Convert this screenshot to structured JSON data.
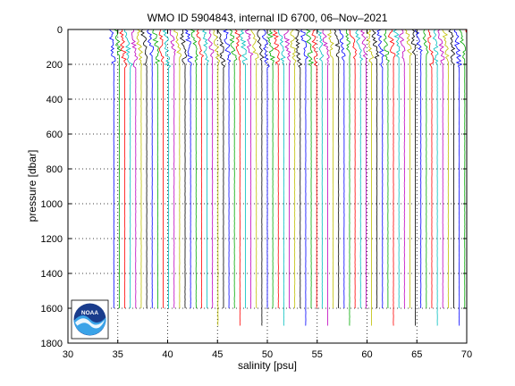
{
  "chart_data": {
    "type": "line",
    "title": "WMO ID 5904843, internal ID 6700, 06–Nov–2021",
    "xlabel": "salinity [psu]",
    "ylabel": "pressure [dbar]",
    "xlim": [
      30,
      70
    ],
    "ylim": [
      0,
      1800
    ],
    "y_reversed": true,
    "xticks": [
      "30",
      "35",
      "40",
      "45",
      "50",
      "55",
      "60",
      "65",
      "70"
    ],
    "yticks": [
      "0",
      "200",
      "400",
      "600",
      "800",
      "1000",
      "1200",
      "1400",
      "1600",
      "1800"
    ],
    "grid": "dotted",
    "colors": [
      "#0000ff",
      "#00aa00",
      "#ff0000",
      "#00bfbf",
      "#bf00bf",
      "#bfbf00",
      "#000000"
    ],
    "profiles": {
      "count": 70,
      "first_offset_psu": 34.6,
      "offset_step_psu": 0.55,
      "description_of_shape": "salinity profiles offset successively; variable near surface (0–200 dbar), nearly constant at depth",
      "surface_salinity": 34.3,
      "mixed_layer_depth_dbar": 180,
      "deep_salinity": 34.65,
      "max_pressure_dbar": 1600,
      "long_profile_max_pressure_dbar": 1700
    }
  },
  "logo": {
    "text": "NOAA"
  }
}
